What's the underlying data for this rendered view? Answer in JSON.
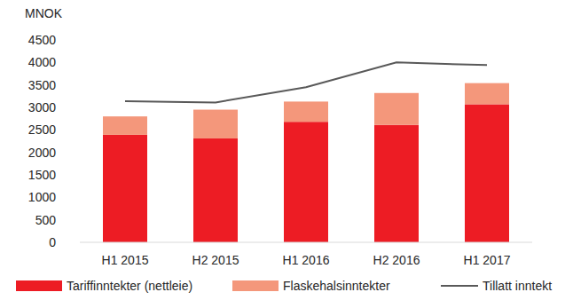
{
  "chart_data": {
    "type": "bar",
    "y_label": "MNOK",
    "stacked": true,
    "grid": false,
    "legend": "bottom",
    "categories": [
      "H1 2015",
      "H2 2015",
      "H1 2016",
      "H2 2016",
      "H1 2017"
    ],
    "ylim": [
      0,
      4500
    ],
    "yticks": [
      0,
      500,
      1000,
      1500,
      2000,
      2500,
      3000,
      3500,
      4000,
      4500
    ],
    "series": [
      {
        "name": "Tariffinntekter (nettleie)",
        "type": "bar",
        "color": "#ed1c24",
        "values": [
          2390,
          2310,
          2680,
          2610,
          3070
        ]
      },
      {
        "name": "Flaskehalsinntekter",
        "type": "bar",
        "color": "#f4977b",
        "values": [
          410,
          640,
          450,
          710,
          470
        ]
      },
      {
        "name": "Tillatt inntekt",
        "type": "line",
        "color": "#595959",
        "line_style": "solid",
        "values": [
          3140,
          3110,
          3450,
          4000,
          3940
        ]
      }
    ]
  }
}
